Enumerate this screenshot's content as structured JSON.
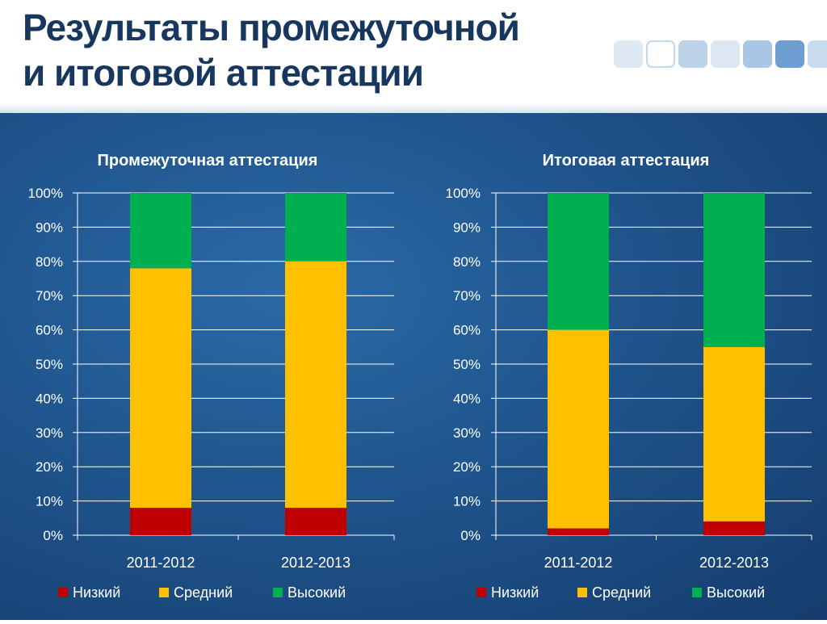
{
  "page": {
    "title_line1": "Результаты промежуточной",
    "title_line2": "и итоговой аттестации"
  },
  "colors": {
    "low": "#c00000",
    "mid": "#ffc000",
    "high": "#00b050",
    "title": "#17375e",
    "text": "#ffffff",
    "grid": "#ffffff"
  },
  "chart_data": [
    {
      "type": "bar",
      "stacked": "percent",
      "title": "Промежуточная аттестация",
      "categories": [
        "2011-2012",
        "2012-2013"
      ],
      "series": [
        {
          "name": "Низкий",
          "color": "#c00000",
          "values": [
            8,
            8
          ]
        },
        {
          "name": "Средний",
          "color": "#ffc000",
          "values": [
            70,
            72
          ]
        },
        {
          "name": "Высокий",
          "color": "#00b050",
          "values": [
            22,
            20
          ]
        }
      ],
      "ylim": [
        0,
        100
      ],
      "yticks": [
        "0%",
        "10%",
        "20%",
        "30%",
        "40%",
        "50%",
        "60%",
        "70%",
        "80%",
        "90%",
        "100%"
      ],
      "grid": true,
      "legend": "bottom"
    },
    {
      "type": "bar",
      "stacked": "percent",
      "title": "Итоговая        аттестация",
      "categories": [
        "2011-2012",
        "2012-2013"
      ],
      "series": [
        {
          "name": "Низкий",
          "color": "#c00000",
          "values": [
            2,
            4
          ]
        },
        {
          "name": "Средний",
          "color": "#ffc000",
          "values": [
            58,
            51
          ]
        },
        {
          "name": "Высокий",
          "color": "#00b050",
          "values": [
            40,
            45
          ]
        }
      ],
      "ylim": [
        0,
        100
      ],
      "yticks": [
        "0%",
        "10%",
        "20%",
        "30%",
        "40%",
        "50%",
        "60%",
        "70%",
        "80%",
        "90%",
        "100%"
      ],
      "grid": true,
      "legend": "bottom"
    }
  ]
}
